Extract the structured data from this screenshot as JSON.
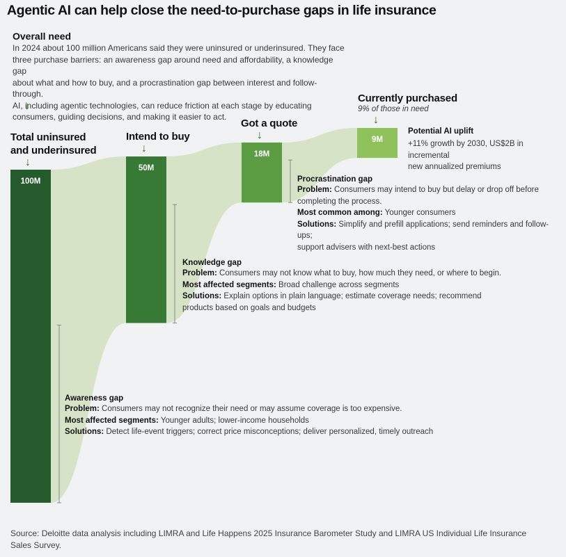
{
  "title": "Agentic AI can help close the need-to-purchase gaps in life insurance",
  "overall": {
    "heading": "Overall need",
    "lines": [
      "In 2024 about 100 million Americans said they were uninsured or underinsured. They face",
      "three purchase barriers: an awareness gap around need and affordability, a knowledge gap",
      "about what and how to buy, and a procrastination gap between interest and follow-through.",
      "AI, including agentic technologies, can reduce friction at each stage by educating",
      "consumers, guiding decisions, and making it easier to act."
    ]
  },
  "stages": {
    "total_line1": "Total uninsured",
    "total_line2": "and underinsured",
    "intend": "Intend to buy",
    "quote": "Got a quote",
    "purchased": "Currently purchased",
    "purchased_sub": "9% of those in need"
  },
  "uplift": {
    "heading": "Potential AI uplift",
    "line1": "+11% growth by 2030, US$2B in incremental",
    "line2": "new annualized premiums"
  },
  "procrastination": {
    "title": "Procrastination gap",
    "problem_label": "Problem:",
    "problem_line1": " Consumers may intend to buy but delay or drop off before",
    "problem_line2": "completing the process.",
    "common_label": "Most common among:",
    "common_text": " Younger consumers",
    "solutions_label": "Solutions:",
    "solutions_line1": " Simplify and prefill applications; send reminders and follow-ups;",
    "solutions_line2": "support advisers with next-best actions"
  },
  "knowledge": {
    "title": "Knowledge gap",
    "problem_label": "Problem:",
    "problem_text": " Consumers may not know what to buy, how much they need, or where to begin.",
    "segments_label": "Most affected segments:",
    "segments_text": " Broad challenge across segments",
    "solutions_label": "Solutions:",
    "solutions_line1": " Explain options in plain language; estimate coverage needs; recommend",
    "solutions_line2": "products based on goals and budgets"
  },
  "awareness": {
    "title": "Awareness gap",
    "problem_label": "Problem:",
    "problem_text": " Consumers may not recognize their need or may assume coverage is too expensive.",
    "segments_label": "Most affected segments:",
    "segments_text": " Younger adults; lower-income households",
    "solutions_label": "Solutions:",
    "solutions_text": " Detect life-event triggers; correct price misconceptions; deliver personalized, timely outreach"
  },
  "source": {
    "line1": "Source: Deloitte data analysis including LIMRA and Life Happens 2025 Insurance Barometer Study and LIMRA US Individual Life Insurance",
    "line2": "Sales Survey."
  },
  "colors": {
    "bar1": "#245a2c",
    "bar2": "#377a35",
    "bar3": "#5c9c43",
    "bar4": "#8fc25b",
    "flow": "#d7e3c7"
  },
  "chart_data": {
    "type": "bar",
    "categories": [
      "Total uninsured and underinsured",
      "Intend to buy",
      "Got a quote",
      "Currently purchased"
    ],
    "values": [
      100,
      50,
      18,
      9
    ],
    "value_labels": [
      "100M",
      "50M",
      "18M",
      "9M"
    ],
    "unit": "M"
  }
}
